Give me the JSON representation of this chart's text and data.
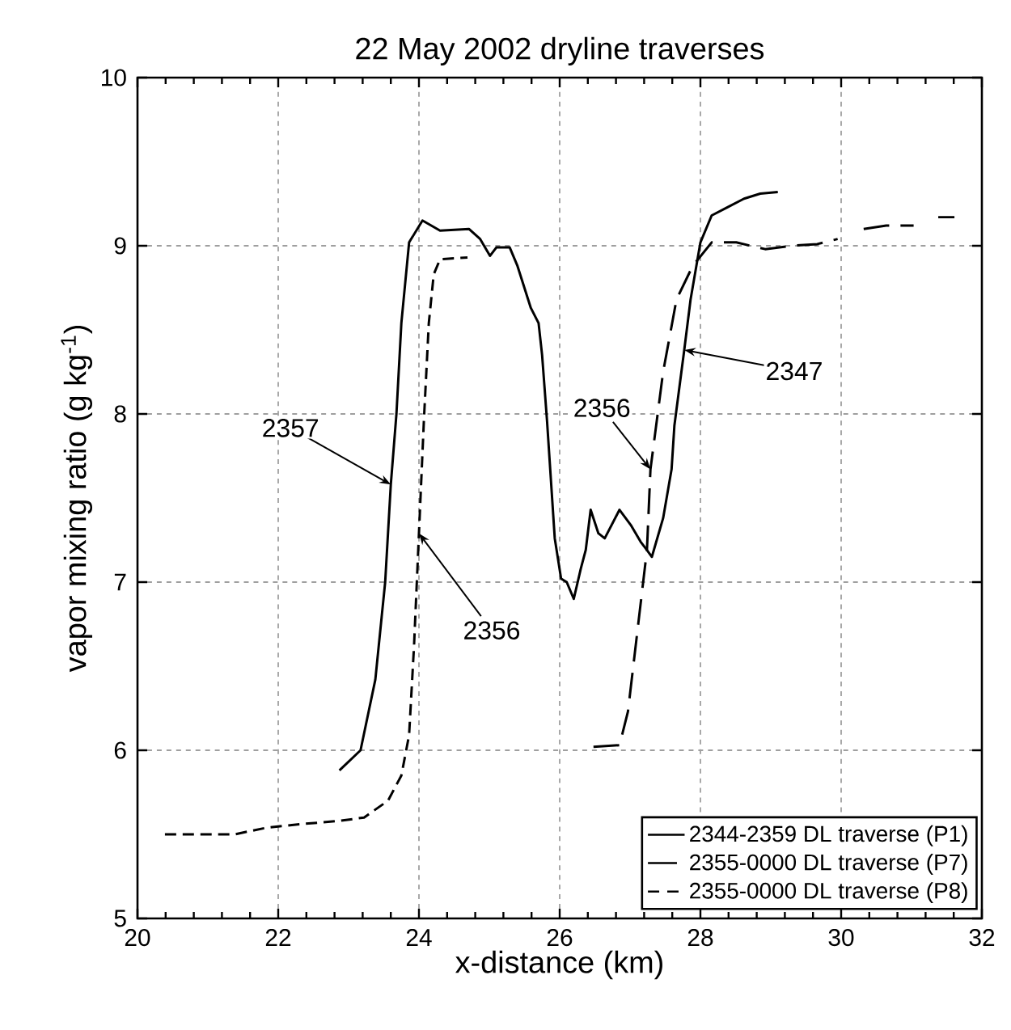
{
  "chart_data": {
    "type": "line",
    "title": "22 May 2002 dryline traverses",
    "xlabel": "x-distance (km)",
    "ylabel": "vapor mixing ratio (g kg$^{-1}$)",
    "xlim": [
      20,
      32
    ],
    "xticks": [
      20,
      22,
      24,
      26,
      28,
      30,
      32
    ],
    "ylim": [
      5,
      10
    ],
    "yticks": [
      5,
      6,
      7,
      8,
      9,
      10
    ],
    "grid": true,
    "legend": "bottom right",
    "series": [
      {
        "name": "2344-2359 DL traverse (P1)",
        "color": "#000000",
        "line_style": "solid",
        "x": [
          22.87,
          23.17,
          23.38,
          23.52,
          23.6,
          23.68,
          23.75,
          23.86,
          24.05,
          24.3,
          24.71,
          24.87,
          25.01,
          25.1,
          25.29,
          25.4,
          25.59,
          25.7,
          25.75,
          25.82,
          25.93,
          26.02,
          26.1,
          26.2,
          26.3,
          26.37,
          26.44,
          26.55,
          26.64,
          26.85,
          27.01,
          27.15,
          27.24,
          27.31,
          27.47,
          27.59,
          27.63,
          27.77,
          27.86,
          28.0,
          28.16,
          28.39,
          28.62,
          28.85,
          29.1
        ],
        "values": [
          5.88,
          6.0,
          6.42,
          7.0,
          7.58,
          8.0,
          8.54,
          9.02,
          9.15,
          9.09,
          9.1,
          9.04,
          8.94,
          8.99,
          8.99,
          8.88,
          8.63,
          8.54,
          8.35,
          7.96,
          7.26,
          7.02,
          7.0,
          6.9,
          7.08,
          7.19,
          7.43,
          7.29,
          7.26,
          7.43,
          7.34,
          7.24,
          7.19,
          7.15,
          7.38,
          7.67,
          7.93,
          8.38,
          8.68,
          9.02,
          9.18,
          9.23,
          9.28,
          9.31,
          9.32
        ]
      },
      {
        "name": "2355-0000 DL traverse (P7)",
        "color": "#000000",
        "line_style": "dashed",
        "x": [
          26.48,
          26.85,
          26.97,
          27.13,
          27.24,
          27.29,
          27.47,
          27.66,
          27.89,
          28.16,
          28.51,
          28.92,
          29.31,
          29.66,
          29.95,
          30.1,
          30.32,
          30.64,
          31.03,
          31.2,
          31.38,
          31.61
        ],
        "values": [
          6.02,
          6.03,
          6.23,
          6.8,
          7.19,
          7.67,
          8.25,
          8.68,
          8.88,
          9.02,
          9.02,
          8.98,
          9.0,
          9.01,
          9.04,
          null,
          9.1,
          9.12,
          9.12,
          null,
          9.17,
          9.17
        ]
      },
      {
        "name": "2355-0000 DL traverse (P8)",
        "color": "#000000",
        "line_style": "dashed",
        "x": [
          20.39,
          20.8,
          21.38,
          21.84,
          22.3,
          22.87,
          23.22,
          23.56,
          23.75,
          23.86,
          23.93,
          24.0,
          24.07,
          24.14,
          24.21,
          24.3,
          24.69
        ],
        "values": [
          5.5,
          5.5,
          5.5,
          5.54,
          5.56,
          5.58,
          5.6,
          5.7,
          5.85,
          6.09,
          6.62,
          7.29,
          7.96,
          8.54,
          8.83,
          8.92,
          8.93
        ]
      }
    ],
    "annotations": [
      {
        "text": "2357",
        "x": 23.6,
        "y": 7.58
      },
      {
        "text": "2356",
        "x": 24.0,
        "y": 7.29
      },
      {
        "text": "2356",
        "x": 27.29,
        "y": 7.67
      },
      {
        "text": "2347",
        "x": 27.77,
        "y": 8.38
      }
    ]
  }
}
